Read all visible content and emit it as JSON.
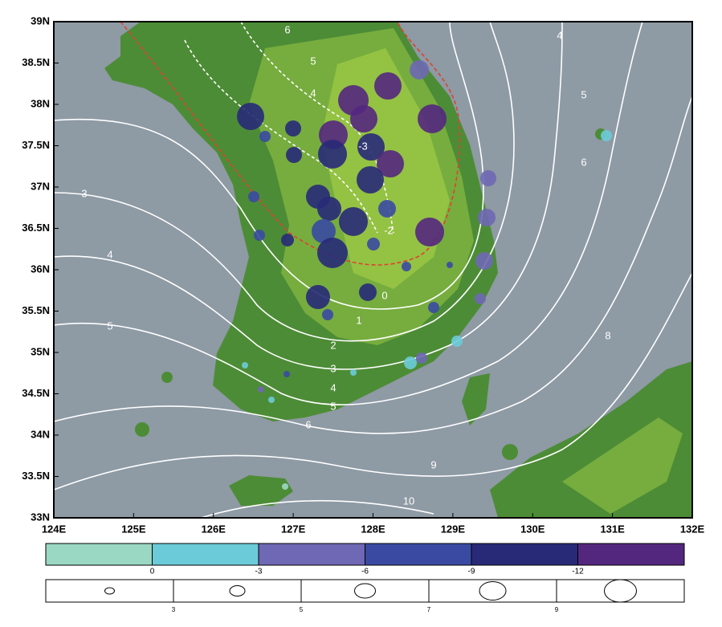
{
  "map": {
    "lat_labels": [
      "39N",
      "38.5N",
      "38N",
      "37.5N",
      "37N",
      "36.5N",
      "36N",
      "35.5N",
      "35N",
      "34.5N",
      "34N",
      "33.5N",
      "33N"
    ],
    "lon_labels": [
      "124E",
      "125E",
      "126E",
      "127E",
      "128E",
      "129E",
      "130E",
      "131E",
      "132E"
    ],
    "contour_labels": [
      "6",
      "5",
      "4",
      "4",
      "5",
      "6",
      "3",
      "4",
      "5",
      "-3",
      "-2",
      "0",
      "1",
      "2",
      "3",
      "4",
      "5",
      "6",
      "8",
      "9",
      "10"
    ],
    "colorbar": {
      "colors": [
        "#9ad8c4",
        "#6ccbd8",
        "#6f68b4",
        "#3a4aa2",
        "#282a78",
        "#54277f"
      ],
      "labels": [
        "0",
        "-3",
        "-6",
        "-9",
        "-12"
      ]
    },
    "size_legend": {
      "labels": [
        "3",
        "5",
        "7",
        "9"
      ]
    }
  }
}
